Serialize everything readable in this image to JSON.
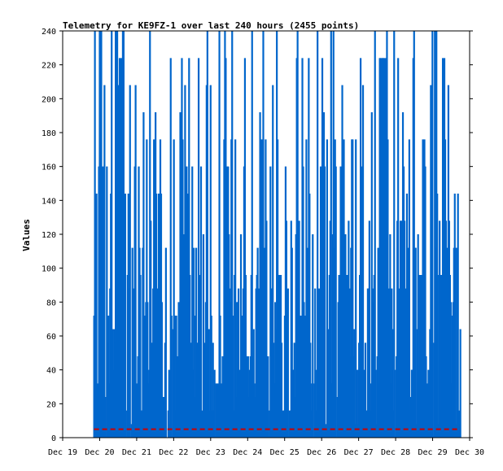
{
  "chart_data": {
    "type": "bar",
    "title": "Telemetry for KE9FZ-1 over last 240 hours (2455 points)",
    "xlabel": "",
    "ylabel": "Values",
    "x_tick_labels": [
      "Dec 19",
      "Dec 20",
      "Dec 21",
      "Dec 22",
      "Dec 23",
      "Dec 24",
      "Dec 25",
      "Dec 26",
      "Dec 27",
      "Dec 28",
      "Dec 29",
      "Dec 30"
    ],
    "xlim_days": [
      0,
      11
    ],
    "data_range_days": [
      0.85,
      10.75
    ],
    "y_ticks": [
      0,
      20,
      40,
      60,
      80,
      100,
      120,
      140,
      160,
      180,
      200,
      220,
      240
    ],
    "ylim": [
      0,
      240
    ],
    "grid": false,
    "legend": "none",
    "series": [
      {
        "color": "#0066cc",
        "style": "impulse",
        "value_levels": [
          0,
          8,
          16,
          24,
          32,
          40,
          48,
          56,
          64,
          72,
          80,
          88,
          96,
          112,
          120,
          128,
          144,
          160,
          176,
          192,
          208,
          224,
          240
        ],
        "approx_point_count": 2455
      },
      {
        "color": "#cc0000",
        "style": "dashed-line",
        "baseline_value": 5
      }
    ]
  },
  "colors": {
    "impulse": "#0066cc",
    "baseline": "#cc0000",
    "frame": "#000000",
    "background": "#ffffff"
  }
}
